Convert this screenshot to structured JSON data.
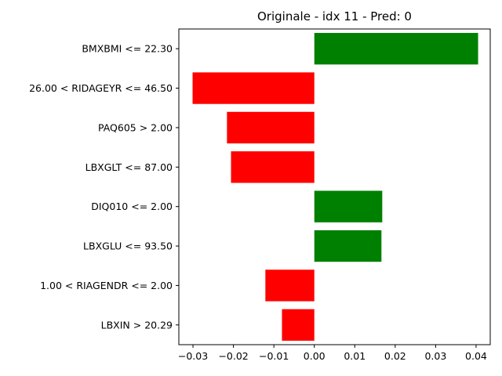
{
  "chart_data": {
    "type": "bar",
    "orientation": "horizontal",
    "title": "Originale - idx 11 - Pred: 0",
    "xlabel": "",
    "ylabel": "",
    "grid": false,
    "xlim": [
      -0.0335,
      0.0435
    ],
    "x_ticks": [
      -0.03,
      -0.02,
      -0.01,
      0.0,
      0.01,
      0.02,
      0.03,
      0.04
    ],
    "x_tick_labels": [
      "−0.03",
      "−0.02",
      "−0.01",
      "0.00",
      "0.01",
      "0.02",
      "0.03",
      "0.04"
    ],
    "categories": [
      "BMXBMI <= 22.30",
      "26.00 < RIDAGEYR <= 46.50",
      "PAQ605 > 2.00",
      "LBXGLT <= 87.00",
      "DIQ010 <= 2.00",
      "LBXGLU <= 93.50",
      "1.00 < RIAGENDR <= 2.00",
      "LBXIN > 20.29"
    ],
    "values": [
      0.0405,
      -0.0301,
      -0.0216,
      -0.0206,
      0.0168,
      0.0166,
      -0.0121,
      -0.008
    ],
    "colors": {
      "positive": "#008000",
      "negative": "#ff0000"
    }
  }
}
